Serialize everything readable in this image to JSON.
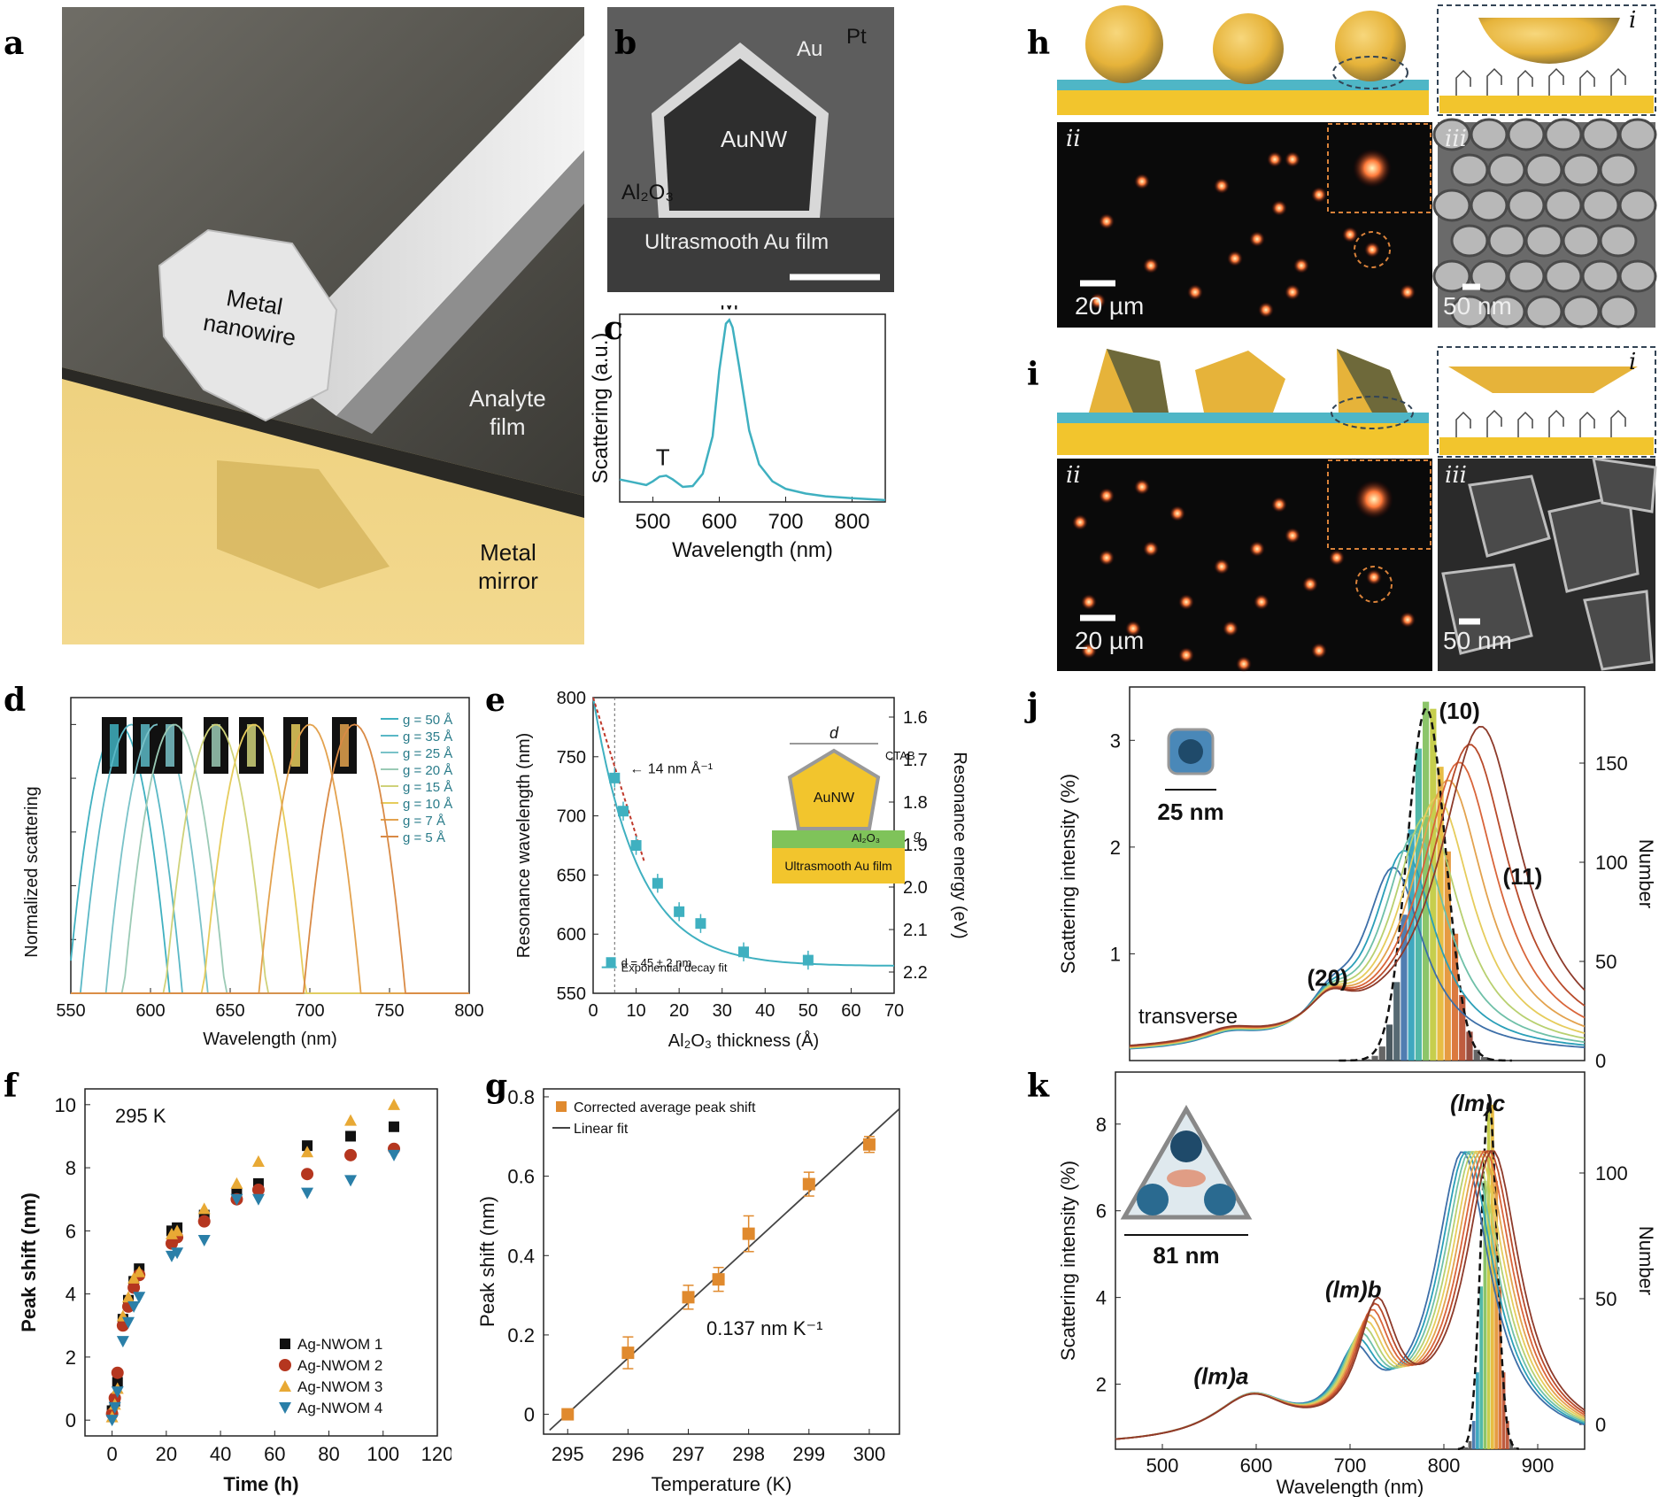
{
  "letters": [
    "a",
    "b",
    "c",
    "d",
    "e",
    "f",
    "g",
    "h",
    "i",
    "j",
    "k"
  ],
  "panel_a": {
    "nanowire_label": "Metal\nnanowire",
    "film_label": "Analyte\nfilm",
    "mirror_label": "Metal\nmirror"
  },
  "panel_b": {
    "au": "Au",
    "pt": "Pt",
    "aunw": "AuNW",
    "al2o3": "Al₂O₃",
    "film": "Ultrasmooth Au film"
  },
  "panel_c": {
    "chart_data": {
      "type": "line",
      "xlabel": "Wavelength (nm)",
      "ylabel": "Scattering (a.u.)",
      "xlim": [
        450,
        850
      ],
      "xticks": [
        500,
        600,
        700,
        800
      ],
      "peaks": [
        "T",
        "M"
      ],
      "x": [
        450,
        470,
        490,
        500,
        510,
        520,
        530,
        545,
        560,
        575,
        590,
        600,
        610,
        615,
        620,
        630,
        645,
        660,
        680,
        700,
        730,
        760,
        800,
        850
      ],
      "y": [
        0.12,
        0.105,
        0.09,
        0.11,
        0.135,
        0.14,
        0.12,
        0.08,
        0.085,
        0.15,
        0.35,
        0.7,
        0.95,
        0.97,
        0.93,
        0.72,
        0.38,
        0.2,
        0.11,
        0.07,
        0.045,
        0.03,
        0.02,
        0.01
      ]
    }
  },
  "panel_d": {
    "chart_data": {
      "type": "line",
      "xlabel": "Wavelength (nm)",
      "ylabel": "Normalized scattering",
      "xlim": [
        550,
        800
      ],
      "xticks": [
        550,
        600,
        650,
        700,
        750,
        800
      ],
      "series": [
        {
          "name": "g = 50 Å",
          "peak": 580,
          "color": "#3fb0c0"
        },
        {
          "name": "g = 35 Å",
          "peak": 588,
          "color": "#5ab8c6"
        },
        {
          "name": "g = 25 Å",
          "peak": 604,
          "color": "#79c2c8"
        },
        {
          "name": "g = 20 Å",
          "peak": 615,
          "color": "#9bcab5"
        },
        {
          "name": "g = 15 Å",
          "peak": 641,
          "color": "#cfd27a"
        },
        {
          "name": "g = 10 Å",
          "peak": 665,
          "color": "#e6cc5c"
        },
        {
          "name": "g = 7 Å",
          "peak": 700,
          "color": "#e3a24e"
        },
        {
          "name": "g = 5 Å",
          "peak": 728,
          "color": "#d98a45"
        }
      ]
    }
  },
  "panel_e": {
    "chart_data": {
      "type": "scatter",
      "xlabel": "Al₂O₃ thickness (Å)",
      "ylabel": "Resonance wavelength (nm)",
      "y2label": "Resonance energy (eV)",
      "xlim": [
        0,
        70
      ],
      "ylim": [
        550,
        800
      ],
      "xticks": [
        0,
        10,
        20,
        30,
        40,
        50,
        60,
        70
      ],
      "yticks": [
        550,
        600,
        650,
        700,
        750,
        800
      ],
      "y2ticks": [
        "1.6",
        "1.7",
        "1.8",
        "1.9",
        "2.0",
        "2.1",
        "2.2"
      ],
      "points": [
        [
          5,
          732
        ],
        [
          7,
          704
        ],
        [
          10,
          675
        ],
        [
          15,
          643
        ],
        [
          20,
          619
        ],
        [
          25,
          609
        ],
        [
          35,
          585
        ],
        [
          50,
          578
        ]
      ],
      "annotation": "14 nm Å⁻¹",
      "legend": [
        "d = 45 ± 2 nm",
        "Exponential decay fit"
      ],
      "inset": {
        "d": "d",
        "ctab": "CTAB",
        "aunw": "AuNW",
        "al2o3": "Al₂O₃",
        "g": "g",
        "film": "Ultrasmooth Au film"
      }
    }
  },
  "panel_f": {
    "chart_data": {
      "type": "scatter",
      "xlabel": "Time (h)",
      "ylabel": "Peak shift (nm)",
      "xlim": [
        -10,
        120
      ],
      "ylim": [
        -0.5,
        10.5
      ],
      "xticks": [
        0,
        20,
        40,
        60,
        80,
        100,
        120
      ],
      "yticks": [
        0,
        2,
        4,
        6,
        8,
        10
      ],
      "temp": "295 K",
      "series": [
        {
          "name": "Ag-NWOM 1",
          "color": "#111111",
          "shape": "square",
          "points": [
            [
              0,
              0.3
            ],
            [
              1,
              0.6
            ],
            [
              2,
              1.2
            ],
            [
              4,
              3.2
            ],
            [
              6,
              3.8
            ],
            [
              8,
              4.4
            ],
            [
              10,
              4.8
            ],
            [
              22,
              6.0
            ],
            [
              24,
              6.1
            ],
            [
              34,
              6.5
            ],
            [
              46,
              7.2
            ],
            [
              54,
              7.5
            ],
            [
              72,
              8.7
            ],
            [
              88,
              9.0
            ],
            [
              104,
              9.3
            ]
          ]
        },
        {
          "name": "Ag-NWOM 2",
          "color": "#b5361f",
          "shape": "circle",
          "points": [
            [
              0,
              0.2
            ],
            [
              1,
              0.7
            ],
            [
              2,
              1.5
            ],
            [
              4,
              3.0
            ],
            [
              6,
              3.6
            ],
            [
              8,
              4.2
            ],
            [
              10,
              4.6
            ],
            [
              22,
              5.6
            ],
            [
              24,
              5.8
            ],
            [
              34,
              6.3
            ],
            [
              46,
              7.0
            ],
            [
              54,
              7.3
            ],
            [
              72,
              7.8
            ],
            [
              88,
              8.4
            ],
            [
              104,
              8.6
            ]
          ]
        },
        {
          "name": "Ag-NWOM 3",
          "color": "#e8a935",
          "shape": "triangle",
          "points": [
            [
              0,
              0.1
            ],
            [
              1,
              0.5
            ],
            [
              2,
              1.0
            ],
            [
              4,
              3.3
            ],
            [
              6,
              3.9
            ],
            [
              8,
              4.5
            ],
            [
              10,
              4.7
            ],
            [
              22,
              5.9
            ],
            [
              24,
              6.0
            ],
            [
              34,
              6.7
            ],
            [
              46,
              7.5
            ],
            [
              54,
              8.2
            ],
            [
              72,
              8.5
            ],
            [
              88,
              9.5
            ],
            [
              104,
              10.0
            ]
          ]
        },
        {
          "name": "Ag-NWOM 4",
          "color": "#2a7fa8",
          "shape": "triangle-down",
          "points": [
            [
              0,
              0.0
            ],
            [
              1,
              0.4
            ],
            [
              2,
              0.9
            ],
            [
              4,
              2.5
            ],
            [
              6,
              3.1
            ],
            [
              8,
              3.6
            ],
            [
              10,
              3.9
            ],
            [
              22,
              5.2
            ],
            [
              24,
              5.3
            ],
            [
              34,
              5.7
            ],
            [
              46,
              7.0
            ],
            [
              54,
              7.0
            ],
            [
              72,
              7.2
            ],
            [
              88,
              7.6
            ],
            [
              104,
              8.4
            ]
          ]
        }
      ]
    }
  },
  "panel_g": {
    "chart_data": {
      "type": "scatter",
      "xlabel": "Temperature (K)",
      "ylabel": "Peak shift (nm)",
      "xlim": [
        294.6,
        300.5
      ],
      "ylim": [
        -0.05,
        0.82
      ],
      "xticks": [
        295,
        296,
        297,
        298,
        299,
        300
      ],
      "yticks": [
        "0",
        "0.2",
        "0.4",
        "0.6",
        "0.8"
      ],
      "points": [
        [
          295,
          0.0
        ],
        [
          296,
          0.155
        ],
        [
          297,
          0.295
        ],
        [
          297.5,
          0.34
        ],
        [
          298,
          0.455
        ],
        [
          299,
          0.58
        ],
        [
          300,
          0.68
        ]
      ],
      "errors": [
        0.01,
        0.04,
        0.03,
        0.03,
        0.045,
        0.03,
        0.02
      ],
      "fit": [
        [
          294.7,
          -0.04
        ],
        [
          300.5,
          0.77
        ]
      ],
      "slope_label": "0.137 nm K⁻¹",
      "legend": [
        "Corrected average peak shift",
        "Linear fit"
      ]
    }
  },
  "panel_h": {
    "labels": [
      "i",
      "ii",
      "iii"
    ],
    "scale1": "20 µm",
    "scale2": "50 nm"
  },
  "panel_i": {
    "labels": [
      "i",
      "ii",
      "iii"
    ],
    "scale1": "20 µm",
    "scale2": "50 nm"
  },
  "panel_j": {
    "chart_data": {
      "type": "line",
      "ylabel": "Scattering intensity (%)",
      "y2label": "Number",
      "ylim": [
        0,
        3.5
      ],
      "yticks": [
        "1",
        "2",
        "3"
      ],
      "y2ticks": [
        "0",
        "50",
        "100",
        "150"
      ],
      "modes": [
        "(10)",
        "(11)",
        "(20)",
        "transverse"
      ],
      "inset": "25 nm"
    }
  },
  "panel_k": {
    "chart_data": {
      "type": "line",
      "xlabel": "Wavelength (nm)",
      "ylabel": "Scattering intensity (%)",
      "y2label": "Number",
      "xlim": [
        450,
        950
      ],
      "xticks": [
        500,
        600,
        700,
        800,
        900
      ],
      "yticks": [
        "2",
        "4",
        "6",
        "8"
      ],
      "y2ticks": [
        "0",
        "50",
        "100"
      ],
      "modes": [
        "(lm)a",
        "(lm)b",
        "(lm)c"
      ],
      "inset": "81 nm"
    }
  }
}
